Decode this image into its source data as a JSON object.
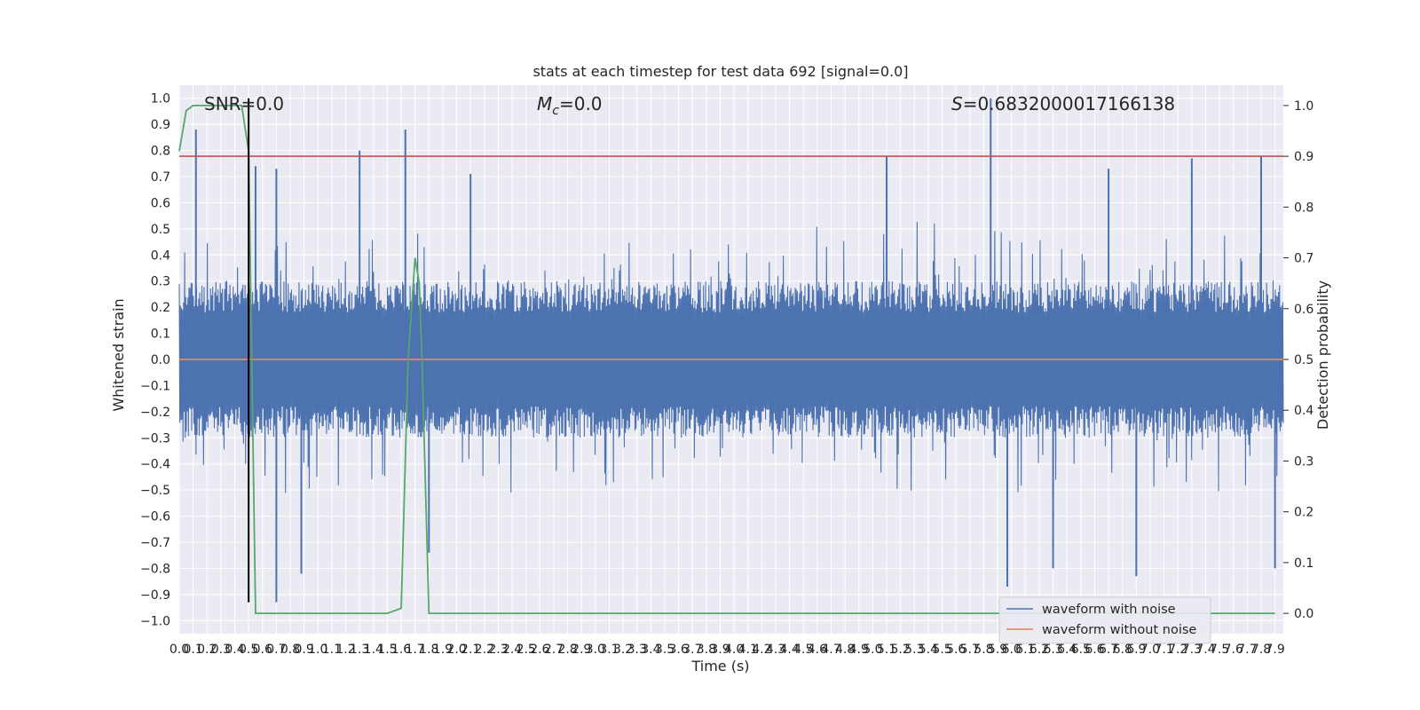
{
  "chart_data": {
    "type": "line",
    "title": "stats at each timestep for test data 692 [signal=0.0]",
    "xlabel": "Time (s)",
    "ylabel_left": "Whitened strain",
    "ylabel_right": "Detection probability",
    "xlim": [
      0.0,
      7.96
    ],
    "ylim_left": [
      -1.05,
      1.05
    ],
    "ylim_right": [
      -0.04,
      1.04
    ],
    "x_ticks": [
      0.0,
      0.1,
      0.2,
      0.3,
      0.4,
      0.5,
      0.6,
      0.7,
      0.8,
      0.9,
      1.0,
      1.1,
      1.2,
      1.3,
      1.4,
      1.5,
      1.6,
      1.7,
      1.8,
      1.9,
      2.0,
      2.1,
      2.2,
      2.3,
      2.4,
      2.5,
      2.6,
      2.7,
      2.8,
      2.9,
      3.0,
      3.1,
      3.2,
      3.3,
      3.4,
      3.5,
      3.6,
      3.7,
      3.8,
      3.9,
      4.0,
      4.1,
      4.2,
      4.3,
      4.4,
      4.5,
      4.6,
      4.7,
      4.8,
      4.9,
      5.0,
      5.1,
      5.2,
      5.3,
      5.4,
      5.5,
      5.6,
      5.7,
      5.8,
      5.9,
      6.0,
      6.1,
      6.2,
      6.3,
      6.4,
      6.5,
      6.6,
      6.7,
      6.8,
      6.9,
      7.0,
      7.1,
      7.2,
      7.3,
      7.4,
      7.5,
      7.6,
      7.7,
      7.8,
      7.9
    ],
    "y_ticks_left": [
      -1.0,
      -0.9,
      -0.8,
      -0.7,
      -0.6,
      -0.5,
      -0.4,
      -0.3,
      -0.2,
      -0.1,
      0.0,
      0.1,
      0.2,
      0.3,
      0.4,
      0.5,
      0.6,
      0.7,
      0.8,
      0.9,
      1.0
    ],
    "y_ticks_right": [
      0.0,
      0.1,
      0.2,
      0.3,
      0.4,
      0.5,
      0.6,
      0.7,
      0.8,
      0.9,
      1.0
    ],
    "annotations": {
      "snr": "SNR=0.0",
      "mc_symbol": "M",
      "mc_sub": "c",
      "mc_value": "=0.0",
      "s_symbol": "S",
      "s_value": "=0.6832000017166138"
    },
    "threshold_line": {
      "axis": "right",
      "value": 0.9,
      "color": "#c44e52"
    },
    "vertical_marker": {
      "x": 0.5,
      "y_range": [
        -0.93,
        1.0
      ],
      "color": "#000000"
    },
    "noise_envelope": {
      "note_free": null,
      "seed": 692,
      "count": 2048,
      "peaks_pos": [
        [
          0.12,
          0.88
        ],
        [
          0.55,
          0.74
        ],
        [
          0.7,
          0.73
        ],
        [
          1.3,
          0.8
        ],
        [
          1.63,
          0.88
        ],
        [
          2.1,
          0.71
        ],
        [
          5.1,
          0.78
        ],
        [
          5.85,
          1.0
        ],
        [
          6.7,
          0.73
        ],
        [
          7.3,
          0.77
        ],
        [
          7.8,
          0.78
        ]
      ],
      "peaks_neg": [
        [
          0.7,
          -0.93
        ],
        [
          0.88,
          -0.82
        ],
        [
          1.8,
          -0.74
        ],
        [
          5.97,
          -0.87
        ],
        [
          6.3,
          -0.8
        ],
        [
          6.9,
          -0.83
        ],
        [
          7.9,
          -0.8
        ]
      ]
    },
    "series": [
      {
        "name": "waveform with noise",
        "color": "#4c72b0",
        "axis": "left"
      },
      {
        "name": "waveform without noise",
        "color": "#dd8452",
        "axis": "left",
        "x": [
          0.0,
          7.96
        ],
        "y": [
          0.0,
          0.0
        ]
      },
      {
        "color": "#55a868",
        "axis": "right",
        "x": [
          0.0,
          0.05,
          0.1,
          0.2,
          0.3,
          0.4,
          0.45,
          0.5,
          0.55,
          1.5,
          1.6,
          1.65,
          1.7,
          1.73,
          1.75,
          1.8,
          7.9
        ],
        "y": [
          0.91,
          0.99,
          1.0,
          1.0,
          1.0,
          1.0,
          1.0,
          0.91,
          0.0,
          0.0,
          0.01,
          0.5,
          0.7,
          0.65,
          0.5,
          0.0,
          0.0
        ]
      }
    ],
    "legend": {
      "placement": "lower right",
      "entries": [
        "waveform with noise",
        "waveform without noise"
      ]
    },
    "grid": true,
    "style": {
      "axes_bg": "#eaeaf2",
      "grid_color": "#ffffff"
    }
  }
}
